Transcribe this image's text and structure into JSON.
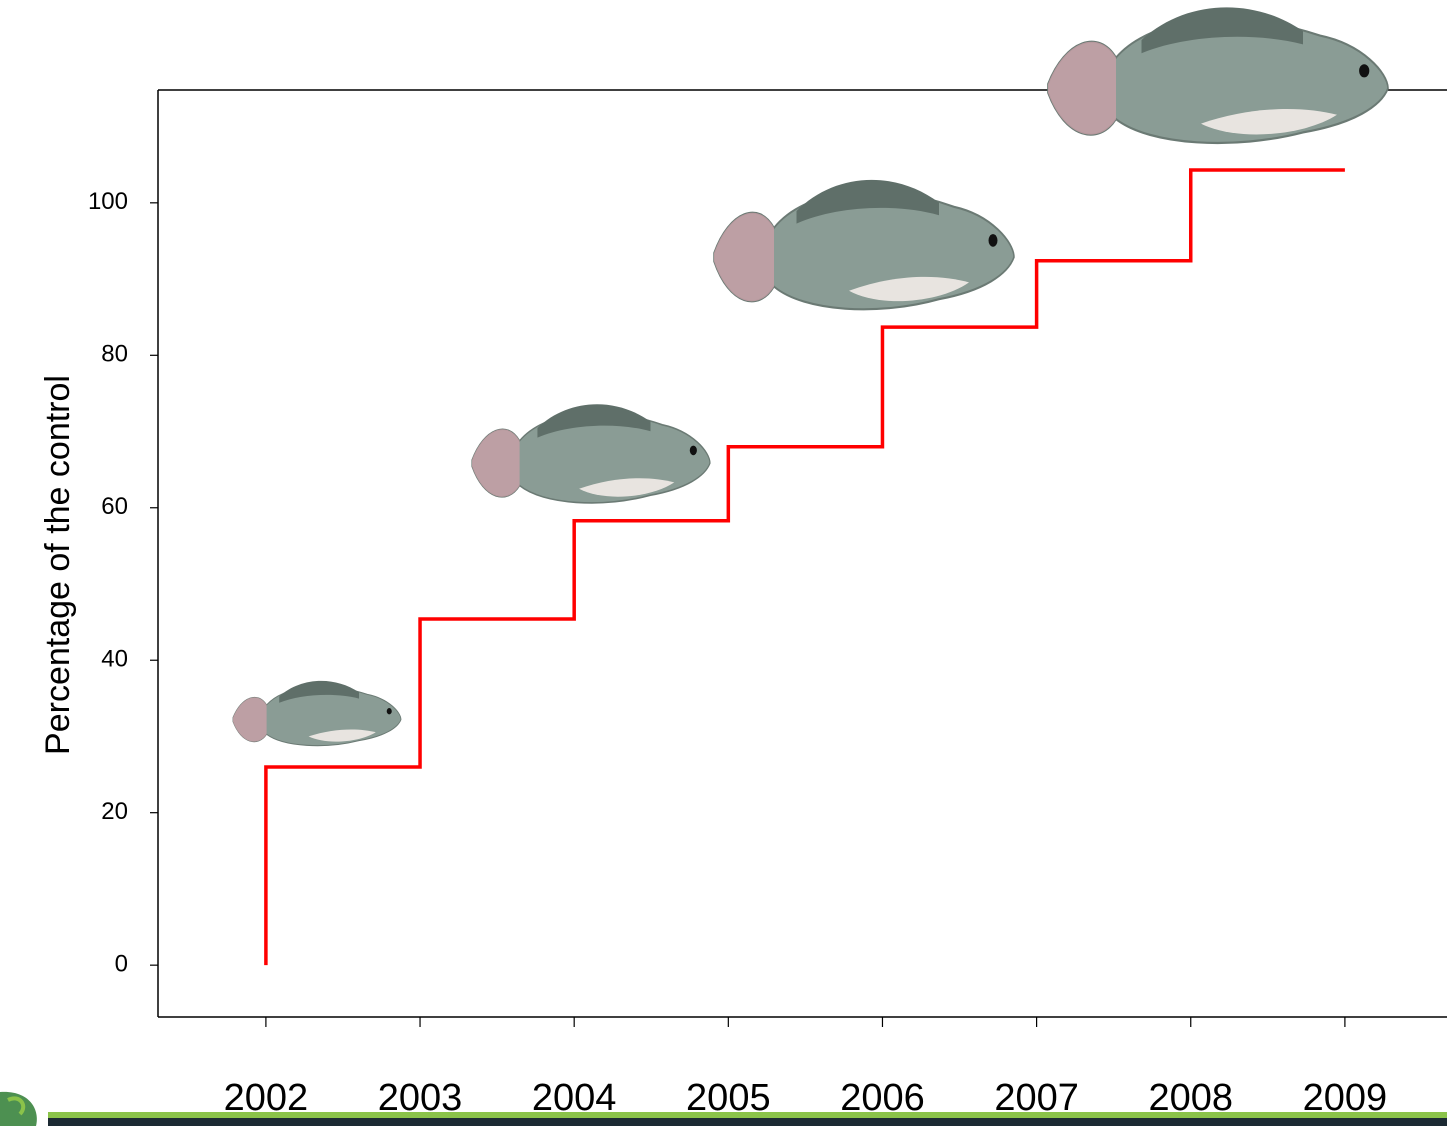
{
  "chart_data": {
    "type": "step",
    "y_label": "Percentage of the control",
    "x": [
      2002,
      2002,
      2003,
      2004,
      2005,
      2006,
      2007,
      2008,
      2009
    ],
    "values": [
      0,
      26,
      45.4,
      58.3,
      68,
      83.7,
      92.4,
      104.3,
      104.3
    ],
    "color": "#ff0000",
    "xlim": [
      2001.3,
      2009.63
    ],
    "xticks": [
      2002,
      2003,
      2004,
      2005,
      2006,
      2007,
      2008,
      2009
    ],
    "ylim": [
      -6.8,
      114.8
    ],
    "yticks": [
      0,
      20,
      40,
      60,
      80,
      100
    ]
  }
}
